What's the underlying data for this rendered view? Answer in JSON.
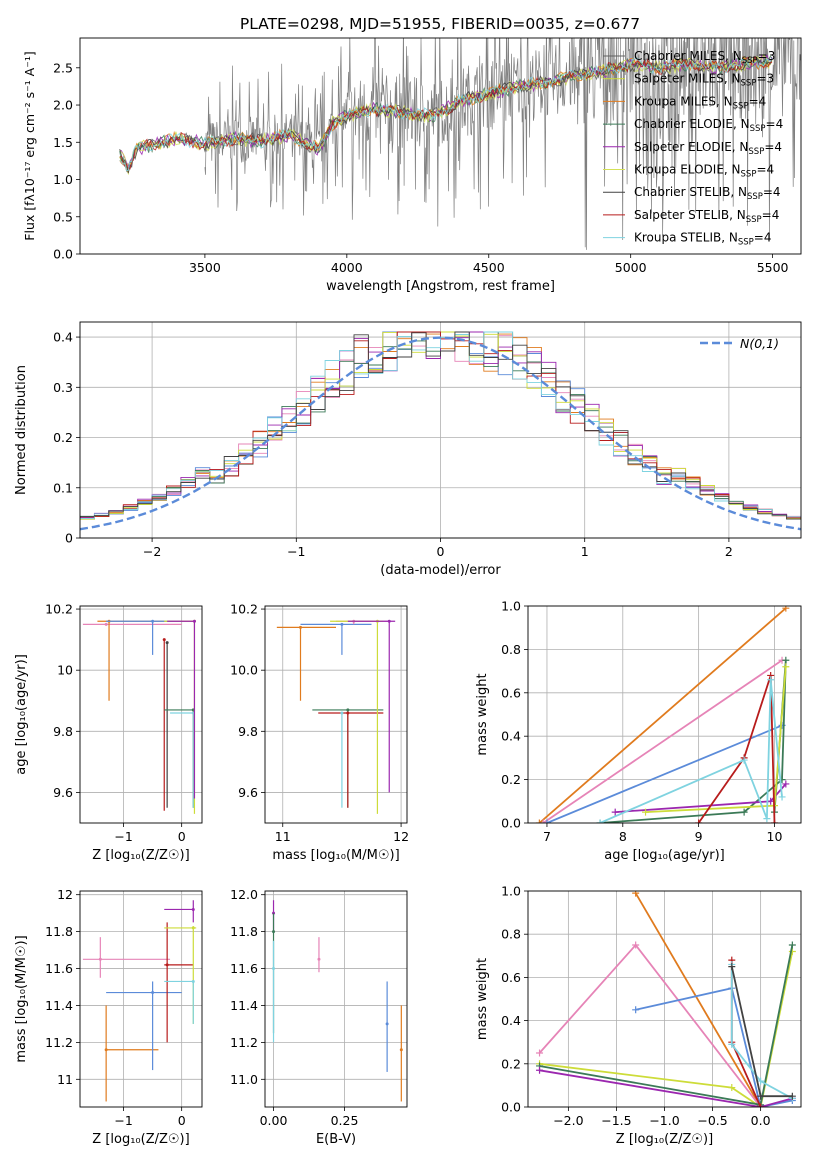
{
  "title": "PLATE=0298, MJD=51955, FIBERID=0035, z=0.677",
  "colors": {
    "chab_miles": "#5f5f5f",
    "salp_miles": "#cddc39",
    "krou_miles": "#e07b1e",
    "chab_elodie": "#3b7a57",
    "salp_elodie": "#9b27af",
    "krou_elodie": "#d4e157",
    "chab_stelib": "#424242",
    "salp_stelib": "#b71c1c",
    "krou_stelib": "#7fd3e0",
    "blue": "#5b8bd9",
    "pink": "#e684b7",
    "data_gray": "#7f7f7f"
  },
  "chart_data": [
    {
      "id": "spectrum",
      "type": "line",
      "xlabel": "wavelength [Angstrom, rest frame]",
      "ylabel": "Flux [f",
      "ylabel_full": "Flux [fλ10⁻¹⁷ erg cm⁻² s⁻¹ A⁻¹]",
      "xlim": [
        3060,
        5600
      ],
      "ylim": [
        0,
        2.9
      ],
      "xticks": [
        3500,
        4000,
        4500,
        5000,
        5500
      ],
      "yticks": [
        0.0,
        0.5,
        1.0,
        1.5,
        2.0,
        2.5
      ],
      "grid": false,
      "legend_position": "upper-right",
      "legend": [
        {
          "base": "Chabrier MILES, N",
          "sub": "SSP",
          "tail": "=3",
          "color": "#5f5f5f"
        },
        {
          "base": "Salpeter MILES, N",
          "sub": "SSP",
          "tail": "=3",
          "color": "#cddc39"
        },
        {
          "base": "Kroupa MILES, N",
          "sub": "SSP",
          "tail": "=4",
          "color": "#e07b1e"
        },
        {
          "base": "Chabrier ELODIE, N",
          "sub": "SSP",
          "tail": "=4",
          "color": "#3b7a57"
        },
        {
          "base": "Salpeter ELODIE, N",
          "sub": "SSP",
          "tail": "=4",
          "color": "#9b27af"
        },
        {
          "base": "Kroupa ELODIE, N",
          "sub": "SSP",
          "tail": "=4",
          "color": "#d4e157"
        },
        {
          "base": "Chabrier STELIB, N",
          "sub": "SSP",
          "tail": "=4",
          "color": "#424242"
        },
        {
          "base": "Salpeter STELIB, N",
          "sub": "SSP",
          "tail": "=4",
          "color": "#b71c1c"
        },
        {
          "base": "Kroupa STELIB, N",
          "sub": "SSP",
          "tail": "=4",
          "color": "#7fd3e0"
        }
      ],
      "model_knots": [
        [
          3200,
          1.35
        ],
        [
          3230,
          1.15
        ],
        [
          3260,
          1.42
        ],
        [
          3300,
          1.45
        ],
        [
          3400,
          1.55
        ],
        [
          3500,
          1.48
        ],
        [
          3550,
          1.5
        ],
        [
          3600,
          1.55
        ],
        [
          3700,
          1.52
        ],
        [
          3800,
          1.6
        ],
        [
          3900,
          1.4
        ],
        [
          3950,
          1.75
        ],
        [
          4000,
          1.85
        ],
        [
          4100,
          1.95
        ],
        [
          4200,
          1.9
        ],
        [
          4300,
          1.85
        ],
        [
          4400,
          2.05
        ],
        [
          4500,
          2.15
        ],
        [
          4600,
          2.25
        ],
        [
          4700,
          2.3
        ],
        [
          4800,
          2.4
        ],
        [
          4900,
          2.45
        ],
        [
          5000,
          2.55
        ],
        [
          5100,
          2.5
        ],
        [
          5200,
          2.55
        ],
        [
          5300,
          2.5
        ],
        [
          5400,
          2.55
        ],
        [
          5500,
          2.6
        ]
      ],
      "noise_start": 3500,
      "noise_end": 5500
    },
    {
      "id": "residuals",
      "type": "histogram",
      "xlabel": "(data-model)/error",
      "ylabel": "Normed distribution",
      "xlim": [
        -2.5,
        2.5
      ],
      "ylim": [
        0,
        0.43
      ],
      "xticks": [
        -2,
        -1,
        0,
        1,
        2
      ],
      "yticks": [
        0.0,
        0.1,
        0.2,
        0.3,
        0.4
      ],
      "grid": true,
      "bin_width": 0.1,
      "legend": "N(0,1)",
      "reference_curve": {
        "name": "N(0,1)",
        "mean": 0,
        "sigma": 1,
        "color": "#5b8bd9"
      }
    },
    {
      "id": "age_vs_Z",
      "type": "errorbar",
      "xlabel": "Z [log₁₀(Z/Z☉)]",
      "ylabel": "age  [log₁₀(age/yr)]",
      "xlim": [
        -1.75,
        0.35
      ],
      "ylim": [
        9.5,
        10.21
      ],
      "xticks": [
        -1,
        0
      ],
      "yticks": [
        9.6,
        9.8,
        10.0,
        10.2
      ],
      "grid": true,
      "points": [
        {
          "x": -1.3,
          "y": 10.15,
          "x_lo": -1.7,
          "x_hi": 0.0,
          "y_lo": 10.15,
          "y_hi": 10.15,
          "color": "#e684b7"
        },
        {
          "x": -1.25,
          "y": 10.16,
          "x_lo": -1.45,
          "x_hi": 0.22,
          "y_lo": 9.9,
          "y_hi": 10.16,
          "color": "#e07b1e"
        },
        {
          "x": -0.5,
          "y": 10.16,
          "x_lo": -1.3,
          "x_hi": 0.0,
          "y_lo": 10.05,
          "y_hi": 10.16,
          "color": "#5b8bd9"
        },
        {
          "x": -0.3,
          "y": 10.1,
          "x_lo": -0.3,
          "x_hi": -0.3,
          "y_lo": 9.54,
          "y_hi": 10.1,
          "color": "#b71c1c"
        },
        {
          "x": -0.25,
          "y": 10.09,
          "x_lo": -0.25,
          "x_hi": -0.25,
          "y_lo": 9.55,
          "y_hi": 10.09,
          "color": "#424242"
        },
        {
          "x": 0.2,
          "y": 9.87,
          "x_lo": -0.3,
          "x_hi": 0.22,
          "y_lo": 9.55,
          "y_hi": 9.87,
          "color": "#3b7a57"
        },
        {
          "x": 0.2,
          "y": 9.86,
          "x_lo": -0.2,
          "x_hi": 0.22,
          "y_lo": 9.55,
          "y_hi": 9.86,
          "color": "#7fd3e0"
        },
        {
          "x": 0.22,
          "y": 10.16,
          "x_lo": -0.3,
          "x_hi": 0.22,
          "y_lo": 9.53,
          "y_hi": 10.16,
          "color": "#cddc39"
        },
        {
          "x": 0.22,
          "y": 10.16,
          "x_lo": -0.25,
          "x_hi": 0.22,
          "y_lo": 9.58,
          "y_hi": 10.16,
          "color": "#9b27af"
        }
      ]
    },
    {
      "id": "age_vs_mass",
      "type": "errorbar",
      "xlabel": "mass [log₁₀(M/M☉)]",
      "ylabel": "",
      "xlim": [
        10.85,
        12.05
      ],
      "ylim": [
        9.5,
        10.21
      ],
      "xticks": [
        11,
        12
      ],
      "yticks": [
        9.6,
        9.8,
        10.0,
        10.2
      ],
      "grid": true,
      "points": [
        {
          "x": 11.15,
          "y": 10.14,
          "x_lo": 10.95,
          "x_hi": 11.45,
          "y_lo": 9.9,
          "y_hi": 10.14,
          "color": "#e07b1e"
        },
        {
          "x": 11.5,
          "y": 10.15,
          "x_lo": 11.15,
          "x_hi": 11.75,
          "y_lo": 10.05,
          "y_hi": 10.15,
          "color": "#5b8bd9"
        },
        {
          "x": 11.6,
          "y": 10.16,
          "x_lo": 11.45,
          "x_hi": 11.9,
          "y_lo": 10.15,
          "y_hi": 10.16,
          "color": "#e684b7"
        },
        {
          "x": 11.55,
          "y": 9.87,
          "x_lo": 11.25,
          "x_hi": 11.85,
          "y_lo": 9.55,
          "y_hi": 9.87,
          "color": "#3b7a57"
        },
        {
          "x": 11.55,
          "y": 9.86,
          "x_lo": 11.3,
          "x_hi": 11.85,
          "y_lo": 9.55,
          "y_hi": 9.86,
          "color": "#b71c1c"
        },
        {
          "x": 11.8,
          "y": 10.16,
          "x_lo": 11.4,
          "x_hi": 11.85,
          "y_lo": 9.53,
          "y_hi": 10.16,
          "color": "#cddc39"
        },
        {
          "x": 11.9,
          "y": 10.16,
          "x_lo": 11.55,
          "x_hi": 11.95,
          "y_lo": 9.6,
          "y_hi": 10.16,
          "color": "#9b27af"
        },
        {
          "x": 11.5,
          "y": 9.86,
          "x_lo": 11.5,
          "x_hi": 11.5,
          "y_lo": 9.55,
          "y_hi": 9.86,
          "color": "#7fd3e0"
        }
      ]
    },
    {
      "id": "weight_vs_age",
      "type": "line",
      "xlabel": "age  [log₁₀(age/yr)]",
      "ylabel": "mass weight",
      "xlim": [
        6.75,
        10.35
      ],
      "ylim": [
        0,
        1.0
      ],
      "xticks": [
        7,
        8,
        9,
        10
      ],
      "yticks": [
        0.0,
        0.2,
        0.4,
        0.6,
        0.8,
        1.0
      ],
      "grid": true,
      "series": [
        {
          "color": "#e07b1e",
          "points": [
            [
              6.9,
              0.0
            ],
            [
              10.15,
              0.99
            ]
          ]
        },
        {
          "color": "#e684b7",
          "points": [
            [
              6.95,
              0.0
            ],
            [
              10.1,
              0.75
            ]
          ]
        },
        {
          "color": "#5b8bd9",
          "points": [
            [
              7.0,
              0.0
            ],
            [
              10.1,
              0.45
            ]
          ]
        },
        {
          "color": "#3b7a57",
          "points": [
            [
              7.7,
              0.0
            ],
            [
              9.6,
              0.05
            ],
            [
              10.1,
              0.2
            ],
            [
              10.15,
              0.75
            ],
            [
              10.0,
              0.05
            ]
          ]
        },
        {
          "color": "#9b27af",
          "points": [
            [
              7.9,
              0.05
            ],
            [
              9.95,
              0.1
            ],
            [
              10.15,
              0.18
            ]
          ]
        },
        {
          "color": "#cddc39",
          "points": [
            [
              8.3,
              0.05
            ],
            [
              10.0,
              0.08
            ],
            [
              10.15,
              0.72
            ]
          ]
        },
        {
          "color": "#b71c1c",
          "points": [
            [
              9.0,
              0.0
            ],
            [
              9.6,
              0.3
            ],
            [
              9.95,
              0.68
            ],
            [
              10.0,
              0.0
            ]
          ]
        },
        {
          "color": "#7fd3e0",
          "points": [
            [
              7.7,
              0.0
            ],
            [
              9.6,
              0.29
            ],
            [
              9.9,
              0.02
            ],
            [
              9.95,
              0.66
            ],
            [
              10.1,
              0.12
            ]
          ]
        }
      ]
    },
    {
      "id": "mass_vs_Z",
      "type": "errorbar",
      "xlabel": "Z [log₁₀(Z/Z☉)]",
      "ylabel": "mass [log₁₀(M/M☉)]",
      "xlim": [
        -1.75,
        0.35
      ],
      "ylim": [
        10.85,
        12.02
      ],
      "xticks": [
        -1,
        0
      ],
      "yticks": [
        11.0,
        11.2,
        11.4,
        11.6,
        11.8,
        12.0
      ],
      "grid": true,
      "points": [
        {
          "x": -1.4,
          "y": 11.65,
          "x_lo": -1.7,
          "x_hi": -0.2,
          "y_lo": 11.55,
          "y_hi": 11.77,
          "color": "#e684b7"
        },
        {
          "x": -1.3,
          "y": 11.16,
          "x_lo": -1.3,
          "x_hi": -0.4,
          "y_lo": 10.88,
          "y_hi": 11.4,
          "color": "#e07b1e"
        },
        {
          "x": -0.5,
          "y": 11.47,
          "x_lo": -1.3,
          "x_hi": 0.0,
          "y_lo": 11.05,
          "y_hi": 11.53,
          "color": "#5b8bd9"
        },
        {
          "x": -0.25,
          "y": 11.62,
          "x_lo": -0.3,
          "x_hi": 0.2,
          "y_lo": 11.2,
          "y_hi": 11.85,
          "color": "#b71c1c"
        },
        {
          "x": 0.2,
          "y": 11.92,
          "x_lo": -0.3,
          "x_hi": 0.22,
          "y_lo": 11.85,
          "y_hi": 11.97,
          "color": "#9b27af"
        },
        {
          "x": 0.2,
          "y": 11.82,
          "x_lo": -0.3,
          "x_hi": 0.25,
          "y_lo": 11.3,
          "y_hi": 11.83,
          "color": "#cddc39"
        },
        {
          "x": 0.2,
          "y": 11.53,
          "x_lo": -0.3,
          "x_hi": 0.22,
          "y_lo": 11.3,
          "y_hi": 11.53,
          "color": "#7fd3e0"
        }
      ]
    },
    {
      "id": "mass_vs_ebv",
      "type": "errorbar",
      "xlabel": "E(B-V)",
      "ylabel": "",
      "xlim": [
        -0.03,
        0.47
      ],
      "ylim": [
        10.85,
        12.02
      ],
      "xticks": [
        0.0,
        0.25
      ],
      "yticks": [
        11.0,
        11.2,
        11.4,
        11.6,
        11.8,
        12.0
      ],
      "grid": true,
      "points": [
        {
          "x": 0.0,
          "y": 11.9,
          "x_lo": 0.0,
          "x_hi": 0.0,
          "y_lo": 11.8,
          "y_hi": 11.97,
          "color": "#9b27af"
        },
        {
          "x": 0.0,
          "y": 11.8,
          "x_lo": 0.0,
          "x_hi": 0.0,
          "y_lo": 11.25,
          "y_hi": 11.9,
          "color": "#3b7a57"
        },
        {
          "x": 0.0,
          "y": 11.6,
          "x_lo": 0.0,
          "x_hi": 0.0,
          "y_lo": 11.2,
          "y_hi": 11.75,
          "color": "#7fd3e0"
        },
        {
          "x": 0.16,
          "y": 11.65,
          "x_lo": 0.16,
          "x_hi": 0.16,
          "y_lo": 11.58,
          "y_hi": 11.77,
          "color": "#e684b7"
        },
        {
          "x": 0.4,
          "y": 11.3,
          "x_lo": 0.4,
          "x_hi": 0.4,
          "y_lo": 11.04,
          "y_hi": 11.53,
          "color": "#5b8bd9"
        },
        {
          "x": 0.45,
          "y": 11.16,
          "x_lo": 0.45,
          "x_hi": 0.45,
          "y_lo": 10.88,
          "y_hi": 11.4,
          "color": "#e07b1e"
        }
      ]
    },
    {
      "id": "weight_vs_Z",
      "type": "line",
      "xlabel": "Z [log₁₀(Z/Z☉)]",
      "ylabel": "mass weight",
      "xlim": [
        -2.42,
        0.42
      ],
      "ylim": [
        0,
        1.0
      ],
      "xticks": [
        -2.0,
        -1.5,
        -1.0,
        -0.5,
        0.0
      ],
      "yticks": [
        0.0,
        0.2,
        0.4,
        0.6,
        0.8,
        1.0
      ],
      "grid": true,
      "series": [
        {
          "color": "#e07b1e",
          "points": [
            [
              -1.3,
              0.99
            ],
            [
              0.0,
              0.0
            ]
          ]
        },
        {
          "color": "#e684b7",
          "points": [
            [
              -2.3,
              0.25
            ],
            [
              -1.3,
              0.75
            ],
            [
              0.0,
              0.0
            ]
          ]
        },
        {
          "color": "#5b8bd9",
          "points": [
            [
              -1.3,
              0.45
            ],
            [
              -0.3,
              0.55
            ],
            [
              0.0,
              0.0
            ],
            [
              0.33,
              0.03
            ]
          ]
        },
        {
          "color": "#cddc39",
          "points": [
            [
              -2.3,
              0.2
            ],
            [
              -0.3,
              0.09
            ],
            [
              0.0,
              0.0
            ],
            [
              0.33,
              0.72
            ]
          ]
        },
        {
          "color": "#3b7a57",
          "points": [
            [
              -2.3,
              0.19
            ],
            [
              0.0,
              0.01
            ],
            [
              0.33,
              0.75
            ]
          ]
        },
        {
          "color": "#9b27af",
          "points": [
            [
              -2.3,
              0.17
            ],
            [
              0.0,
              0.0
            ],
            [
              0.33,
              0.04
            ]
          ]
        },
        {
          "color": "#b71c1c",
          "points": [
            [
              -0.3,
              0.68
            ],
            [
              -0.3,
              0.3
            ],
            [
              0.0,
              0.0
            ]
          ]
        },
        {
          "color": "#7fd3e0",
          "points": [
            [
              -0.3,
              0.66
            ],
            [
              -0.3,
              0.29
            ],
            [
              0.0,
              0.12
            ],
            [
              0.33,
              0.04
            ]
          ]
        },
        {
          "color": "#424242",
          "points": [
            [
              -0.3,
              0.65
            ],
            [
              0.0,
              0.05
            ],
            [
              0.33,
              0.05
            ]
          ]
        }
      ]
    }
  ]
}
